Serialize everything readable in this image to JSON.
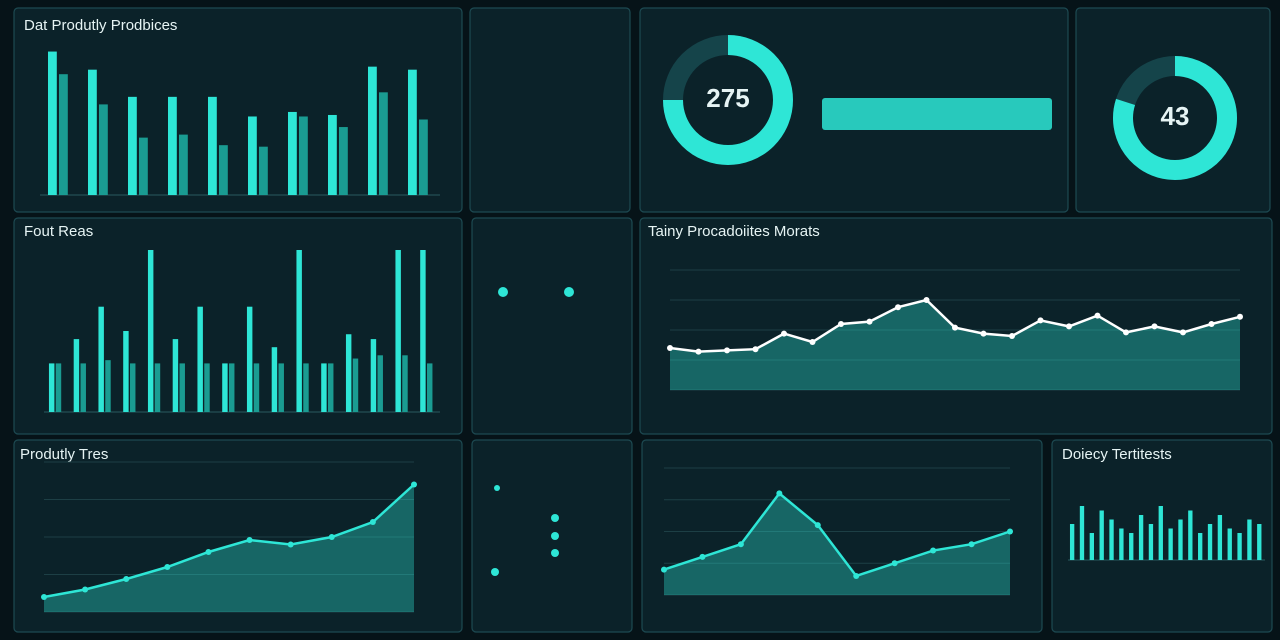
{
  "chart_data": [
    {
      "type": "bar",
      "title": "Dat Produtly Prodbices",
      "categories": [
        null,
        null,
        null,
        null,
        null,
        null,
        null,
        null,
        null,
        null
      ],
      "ylim": [
        0,
        100
      ],
      "series": [
        {
          "color": "#2ee6d6",
          "values": [
            95,
            83,
            65,
            65,
            65,
            52,
            55,
            53,
            85,
            83
          ]
        },
        {
          "color": "#1a9c92",
          "values": [
            80,
            60,
            38,
            40,
            33,
            32,
            52,
            45,
            68,
            50
          ]
        }
      ]
    },
    {
      "type": "bar",
      "title": "Fout Reas",
      "categories": [
        null,
        null,
        null,
        null,
        null,
        null,
        null,
        null,
        null,
        null,
        null,
        null,
        null,
        null,
        null,
        null
      ],
      "ylim": [
        0,
        100
      ],
      "series": [
        {
          "color": "#2ee6d6",
          "values": [
            30,
            45,
            65,
            50,
            100,
            45,
            65,
            30,
            65,
            40,
            100,
            30,
            48,
            45,
            100,
            100
          ]
        },
        {
          "color": "#1a9c92",
          "values": [
            30,
            30,
            32,
            30,
            30,
            30,
            30,
            30,
            30,
            30,
            30,
            30,
            33,
            35,
            35,
            30
          ]
        }
      ]
    },
    {
      "type": "line",
      "title": "Tainy Procadoiites Morats",
      "categories": [
        null,
        null,
        null,
        null,
        null,
        null,
        null,
        null,
        null,
        null,
        null,
        null,
        null,
        null,
        null,
        null,
        null,
        null,
        null,
        null,
        null
      ],
      "ylim": [
        0,
        100
      ],
      "fill": true,
      "series": [
        {
          "color": "#ffffff",
          "values": [
            35,
            32,
            33,
            34,
            47,
            40,
            55,
            57,
            69,
            75,
            52,
            47,
            45,
            58,
            53,
            62,
            48,
            53,
            48,
            55,
            61
          ]
        }
      ]
    },
    {
      "type": "line",
      "title": "Produtly Tres",
      "categories": [
        null,
        null,
        null,
        null,
        null,
        null,
        null,
        null,
        null,
        null
      ],
      "ylim": [
        0,
        100
      ],
      "fill": true,
      "series": [
        {
          "color": "#2ee6d6",
          "values": [
            10,
            15,
            22,
            30,
            40,
            48,
            45,
            50,
            60,
            85
          ]
        }
      ]
    },
    {
      "type": "line",
      "categories": [
        null,
        null,
        null,
        null,
        null,
        null,
        null,
        null,
        null,
        null
      ],
      "ylim": [
        0,
        100
      ],
      "fill": true,
      "series": [
        {
          "color": "#2ee6d6",
          "values": [
            20,
            30,
            40,
            80,
            55,
            15,
            25,
            35,
            40,
            50
          ]
        }
      ]
    },
    {
      "type": "bar",
      "title": "Doiecy Tertitests",
      "categories": [
        null,
        null,
        null,
        null,
        null,
        null,
        null,
        null,
        null,
        null,
        null,
        null,
        null,
        null,
        null,
        null,
        null,
        null,
        null,
        null
      ],
      "ylim": [
        0,
        100
      ],
      "series": [
        {
          "color": "#2ee6d6",
          "values": [
            40,
            60,
            30,
            55,
            45,
            35,
            30,
            50,
            40,
            60,
            35,
            45,
            55,
            30,
            40,
            50,
            35,
            30,
            45,
            40
          ]
        }
      ]
    },
    {
      "type": "donut",
      "center_label": "275",
      "ylim": [
        0,
        100
      ],
      "color": "#2ee6d6",
      "values": [
        75
      ]
    },
    {
      "type": "donut",
      "center_label": "43",
      "ylim": [
        0,
        100
      ],
      "color": "#2ee6d6",
      "values": [
        80
      ]
    }
  ]
}
